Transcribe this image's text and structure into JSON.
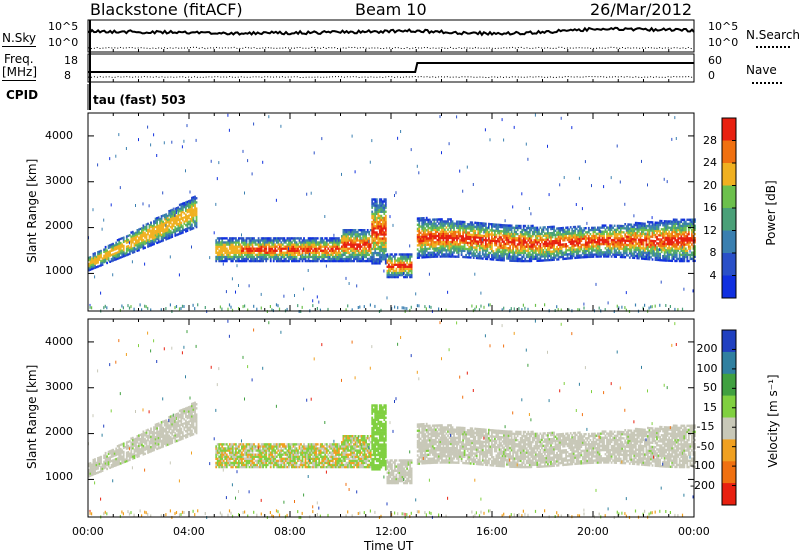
{
  "header": {
    "station": "Blackstone (fitACF)",
    "beam": "Beam 10",
    "date": "26/Mar/2012"
  },
  "aux": {
    "nsky_label": "N.Sky",
    "nsky_ticks": [
      "10^5",
      "10^0"
    ],
    "nsearch_label": "N.Search",
    "nsearch_ticks": [
      "10^5",
      "10^0"
    ],
    "freq_label": "Freq.",
    "freq_unit": "[MHz]",
    "freq_ticks": [
      "18",
      "8"
    ],
    "nave_label": "Nave",
    "nave_ticks": [
      "60",
      "0"
    ],
    "cpid_label": "CPID",
    "cpid_value": "tau (fast) 503"
  },
  "chart_data": [
    {
      "type": "heatmap",
      "name": "power",
      "ylabel": "Slant Range [km]",
      "yticks": [
        "4000",
        "3000",
        "2000",
        "1000"
      ],
      "ylim": [
        180,
        4500
      ],
      "xlim_hours": [
        0,
        24
      ],
      "colorbar": {
        "label": "Power [dB]",
        "ticks": [
          "28",
          "24",
          "20",
          "16",
          "12",
          "8",
          "4"
        ],
        "range": [
          0,
          30
        ],
        "colors": [
          "#1030e0",
          "#2a50c8",
          "#3a7fb0",
          "#4aa078",
          "#6cc04c",
          "#f0b020",
          "#f07010",
          "#e82010"
        ]
      },
      "bands": [
        {
          "t0": 0.0,
          "t1": 4.3,
          "r0": 1050,
          "r1": 1350,
          "r_end0": 2000,
          "r_end1": 2700,
          "level": "mixed"
        },
        {
          "t0": 5.0,
          "t1": 11.2,
          "r0": 1250,
          "r1": 1750,
          "level": "strong"
        },
        {
          "t0": 11.2,
          "t1": 12.8,
          "r0": 900,
          "r1": 1350,
          "level": "strong"
        },
        {
          "t0": 13.0,
          "t1": 24.0,
          "r0": 1300,
          "r1": 2100,
          "level": "strong"
        }
      ]
    },
    {
      "type": "heatmap",
      "name": "velocity",
      "ylabel": "Slant Range [km]",
      "yticks": [
        "4000",
        "3000",
        "2000",
        "1000"
      ],
      "ylim": [
        180,
        4500
      ],
      "xlim_hours": [
        0,
        24
      ],
      "colorbar": {
        "label": "Velocity [m s⁻¹]",
        "ticks": [
          "200",
          "100",
          "50",
          "15",
          "-15",
          "-50",
          "-100",
          "-200"
        ],
        "colors": [
          "#2040c0",
          "#3080a0",
          "#40a040",
          "#80d040",
          "#c8c8b8",
          "#f0a020",
          "#f07010",
          "#e82010"
        ]
      }
    }
  ],
  "xaxis": {
    "label": "Time UT",
    "ticks": [
      "00:00",
      "04:00",
      "08:00",
      "12:00",
      "16:00",
      "20:00",
      "00:00"
    ]
  }
}
